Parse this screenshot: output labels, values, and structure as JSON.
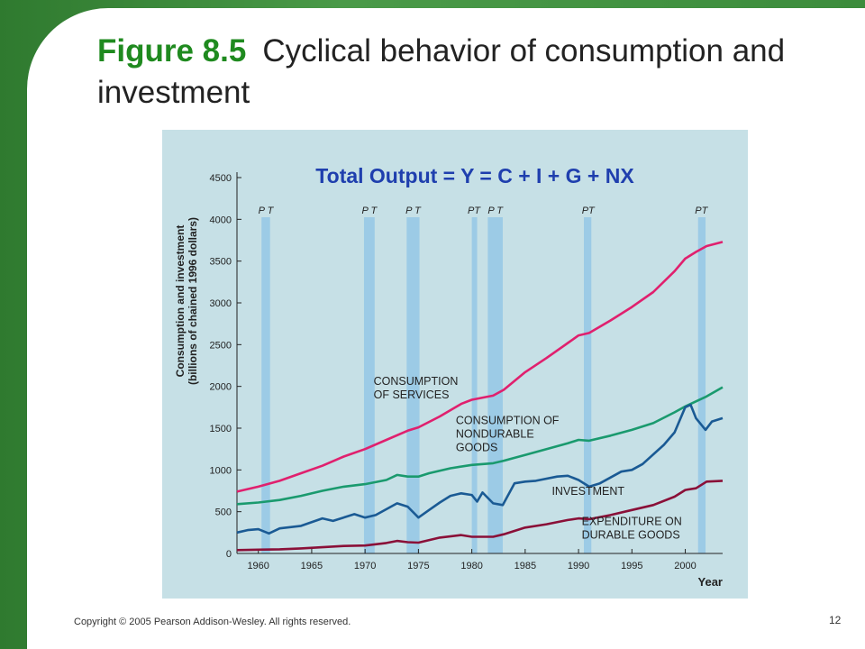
{
  "slide": {
    "title_figure": "Figure 8.5",
    "title_text": "Cyclical behavior of consumption and investment",
    "footer": "Copyright © 2005 Pearson Addison-Wesley. All rights reserved.",
    "page_number": "12"
  },
  "colors": {
    "services": "#e0206e",
    "nondurables": "#1a9a6e",
    "investment": "#1a5a94",
    "durables": "#8a1038",
    "recession": "#9ccbe6",
    "panel": "#c6e0e6",
    "banner": "#1f3fae",
    "title_accent": "#1f8a1f"
  },
  "chart_data": {
    "type": "line",
    "banner": "Total Output = Y = C + I + G + NX",
    "ylabel_line1": "Consumption and investment",
    "ylabel_line2": "(billions of chained 1996 dollars)",
    "xlabel": "Year",
    "xlim": [
      1958,
      2003.5
    ],
    "ylim": [
      0,
      4500
    ],
    "xticks": [
      1960,
      1965,
      1970,
      1975,
      1980,
      1985,
      1990,
      1995,
      2000
    ],
    "yticks": [
      0,
      500,
      1000,
      1500,
      2000,
      2500,
      3000,
      3500,
      4000,
      4500
    ],
    "grid": false,
    "recessions": [
      {
        "peak": 1960.3,
        "trough": 1961.1
      },
      {
        "peak": 1969.9,
        "trough": 1970.9
      },
      {
        "peak": 1973.9,
        "trough": 1975.1
      },
      {
        "peak": 1980.0,
        "trough": 1980.5
      },
      {
        "peak": 1981.5,
        "trough": 1982.9
      },
      {
        "peak": 1990.5,
        "trough": 1991.2
      },
      {
        "peak": 2001.2,
        "trough": 2001.9
      }
    ],
    "recession_labels": [
      {
        "text": "P T",
        "x": 1960.7
      },
      {
        "text": "P T",
        "x": 1970.4
      },
      {
        "text": "P T",
        "x": 1974.5
      },
      {
        "text": "PT",
        "x": 1980.2
      },
      {
        "text": "P T",
        "x": 1982.2
      },
      {
        "text": "PT",
        "x": 1990.9
      },
      {
        "text": "PT",
        "x": 2001.5
      }
    ],
    "series": [
      {
        "name": "CONSUMPTION OF SERVICES",
        "key": "services",
        "x": [
          1958,
          1960,
          1962,
          1964,
          1966,
          1968,
          1970,
          1972,
          1974,
          1975,
          1977,
          1979,
          1980,
          1982,
          1983,
          1985,
          1987,
          1989,
          1990,
          1991,
          1993,
          1995,
          1997,
          1999,
          2000,
          2001,
          2002,
          2003.5
        ],
        "y": [
          740,
          800,
          870,
          960,
          1050,
          1160,
          1250,
          1360,
          1470,
          1510,
          1640,
          1790,
          1840,
          1890,
          1960,
          2170,
          2340,
          2520,
          2610,
          2640,
          2790,
          2950,
          3130,
          3380,
          3530,
          3610,
          3680,
          3730
        ]
      },
      {
        "name": "CONSUMPTION OF NONDURABLE GOODS",
        "key": "nondurables",
        "x": [
          1958,
          1960,
          1962,
          1964,
          1966,
          1968,
          1970,
          1972,
          1973,
          1974,
          1975,
          1976,
          1978,
          1980,
          1982,
          1983,
          1985,
          1987,
          1989,
          1990,
          1991,
          1993,
          1995,
          1997,
          1999,
          2000,
          2001,
          2002,
          2003.5
        ],
        "y": [
          590,
          610,
          640,
          690,
          750,
          800,
          830,
          880,
          940,
          920,
          920,
          960,
          1020,
          1060,
          1080,
          1110,
          1180,
          1250,
          1320,
          1360,
          1350,
          1410,
          1480,
          1560,
          1690,
          1760,
          1820,
          1880,
          1990
        ]
      },
      {
        "name": "INVESTMENT",
        "key": "investment",
        "x": [
          1958,
          1959,
          1960,
          1961,
          1962,
          1964,
          1966,
          1967,
          1969,
          1970,
          1971,
          1973,
          1974,
          1975,
          1976,
          1977,
          1978,
          1979,
          1980,
          1980.5,
          1981,
          1982,
          1982.9,
          1984,
          1985,
          1986,
          1988,
          1989,
          1990,
          1991,
          1992,
          1994,
          1995,
          1996,
          1998,
          1999,
          2000,
          2000.5,
          2001,
          2001.9,
          2002.5,
          2003.5
        ],
        "y": [
          250,
          280,
          290,
          240,
          300,
          330,
          420,
          390,
          470,
          430,
          460,
          600,
          560,
          430,
          520,
          610,
          690,
          720,
          700,
          620,
          730,
          600,
          580,
          840,
          860,
          870,
          920,
          930,
          880,
          800,
          840,
          980,
          1000,
          1070,
          1300,
          1450,
          1750,
          1780,
          1620,
          1480,
          1580,
          1620
        ]
      },
      {
        "name": "EXPENDITURE ON DURABLE GOODS",
        "key": "durables",
        "x": [
          1958,
          1960,
          1962,
          1964,
          1966,
          1968,
          1970,
          1972,
          1973,
          1974,
          1975,
          1977,
          1979,
          1980,
          1982,
          1983,
          1985,
          1987,
          1989,
          1990,
          1991,
          1993,
          1995,
          1997,
          1999,
          2000,
          2001,
          2002,
          2003.5
        ],
        "y": [
          40,
          45,
          50,
          60,
          75,
          90,
          95,
          125,
          150,
          135,
          130,
          190,
          220,
          200,
          200,
          230,
          310,
          350,
          400,
          420,
          410,
          460,
          520,
          580,
          680,
          760,
          780,
          860,
          870
        ]
      }
    ],
    "annotations": [
      {
        "lines": [
          "CONSUMPTION",
          "OF SERVICES"
        ],
        "x": 1970.8,
        "y": 2020
      },
      {
        "lines": [
          "CONSUMPTION OF",
          "NONDURABLE",
          "GOODS"
        ],
        "x": 1978.5,
        "y": 1550
      },
      {
        "lines": [
          "INVESTMENT"
        ],
        "x": 1987.5,
        "y": 700
      },
      {
        "lines": [
          "EXPENDITURE ON",
          "DURABLE GOODS"
        ],
        "x": 1990.3,
        "y": 340
      }
    ]
  }
}
